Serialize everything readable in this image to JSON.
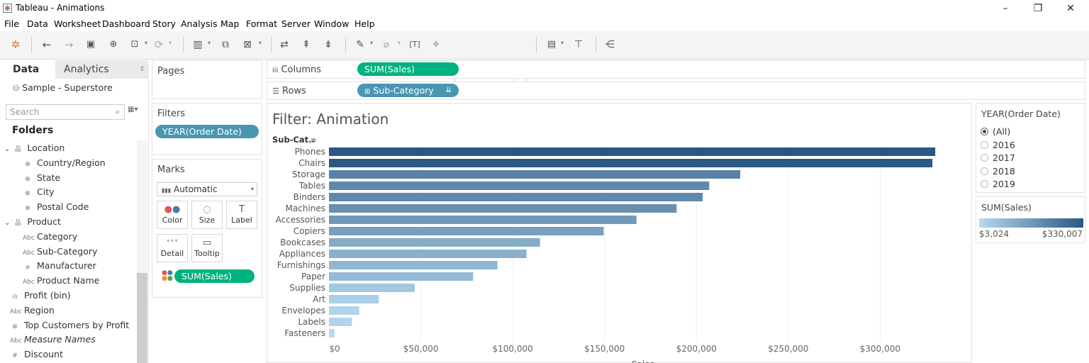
{
  "window": {
    "title": "Tableau - Animations",
    "controls": {
      "minimize": "–",
      "restore": "❐",
      "close": "✕"
    }
  },
  "menu": [
    "File",
    "Data",
    "Worksheet",
    "Dashboard",
    "Story",
    "Analysis",
    "Map",
    "Format",
    "Server",
    "Window",
    "Help"
  ],
  "toolbar": {
    "fit_select": "Standard",
    "show_me": "Show Me",
    "icons": [
      "tableau-logo-icon",
      "undo-icon",
      "redo-icon",
      "save-icon",
      "new-datasource-icon",
      "pause-updates-icon",
      "refresh-icon",
      "new-worksheet-icon",
      "duplicate-sheet-icon",
      "clear-sheet-icon",
      "swap-icon",
      "sort-ascending-icon",
      "sort-descending-icon",
      "highlight-icon",
      "group-icon",
      "label-icon",
      "pin-icon",
      "chart-type-icon",
      "presentation-icon",
      "share-icon"
    ]
  },
  "data_pane": {
    "tabs": [
      "Data",
      "Analytics"
    ],
    "datasource": "Sample - Superstore",
    "search_placeholder": "Search",
    "folders_label": "Folders",
    "fields": [
      {
        "label": "Location",
        "icon": "hierarchy-icon",
        "level": 0,
        "expand": "⌄"
      },
      {
        "label": "Country/Region",
        "icon": "globe-icon",
        "level": 1
      },
      {
        "label": "State",
        "icon": "globe-icon",
        "level": 1
      },
      {
        "label": "City",
        "icon": "globe-icon",
        "level": 1
      },
      {
        "label": "Postal Code",
        "icon": "globe-icon",
        "level": 1
      },
      {
        "label": "Product",
        "icon": "hierarchy-icon",
        "level": 0,
        "expand": "⌄"
      },
      {
        "label": "Category",
        "icon": "abc-icon",
        "level": 1
      },
      {
        "label": "Sub-Category",
        "icon": "abc-icon",
        "level": 1
      },
      {
        "label": "Manufacturer",
        "icon": "clip-icon",
        "level": 1
      },
      {
        "label": "Product Name",
        "icon": "abc-icon",
        "level": 1
      },
      {
        "label": "Profit (bin)",
        "icon": "bin-icon",
        "level": 0
      },
      {
        "label": "Region",
        "icon": "abc-icon",
        "level": 0
      },
      {
        "label": "Top Customers by Profit",
        "icon": "set-icon",
        "level": 0
      },
      {
        "label": "Measure Names",
        "icon": "abc-icon",
        "level": 0,
        "italic": true
      },
      {
        "label": "Discount",
        "icon": "hash-icon",
        "level": 0
      }
    ]
  },
  "pages_label": "Pages",
  "filters": {
    "label": "Filters",
    "pill": "YEAR(Order Date)"
  },
  "marks": {
    "label": "Marks",
    "type": "Automatic",
    "buttons": [
      {
        "label": "Color",
        "icon": "color-dots-icon"
      },
      {
        "label": "Size",
        "icon": "size-icon"
      },
      {
        "label": "Label",
        "icon": "label-t-icon"
      },
      {
        "label": "Detail",
        "icon": "detail-dots-icon"
      },
      {
        "label": "Tooltip",
        "icon": "tooltip-icon"
      }
    ],
    "pill": "SUM(Sales)"
  },
  "columns": {
    "label": "Columns",
    "pill": "SUM(Sales)"
  },
  "rows": {
    "label": "Rows",
    "pill": "Sub-Category"
  },
  "sheet_title": "Filter: Animation",
  "year_filter": {
    "title": "YEAR(Order Date)",
    "options": [
      "(All)",
      "2016",
      "2017",
      "2018",
      "2019"
    ],
    "selected": "(All)"
  },
  "sales_legend": {
    "title": "SUM(Sales)",
    "min_label": "$3,024",
    "max_label": "$330,007",
    "color_low": "#b5d9ef",
    "color_high": "#2a5783"
  },
  "chart_data": {
    "type": "bar",
    "orientation": "horizontal",
    "title": "Filter: Animation",
    "row_header": "Sub-Cat..",
    "xlabel": "Sales",
    "categories": [
      "Phones",
      "Chairs",
      "Storage",
      "Tables",
      "Binders",
      "Machines",
      "Accessories",
      "Copiers",
      "Bookcases",
      "Appliances",
      "Furnishings",
      "Paper",
      "Supplies",
      "Art",
      "Envelopes",
      "Labels",
      "Fasteners"
    ],
    "values": [
      330007,
      328449,
      223844,
      206966,
      203413,
      189239,
      167380,
      149528,
      114880,
      107532,
      91705,
      78479,
      46674,
      27119,
      16476,
      12486,
      3024
    ],
    "xlim": [
      0,
      345000
    ],
    "xticks": [
      0,
      50000,
      100000,
      150000,
      200000,
      250000,
      300000
    ],
    "xtick_labels": [
      "$0",
      "$50,000",
      "$100,000",
      "$150,000",
      "$200,000",
      "$250,000",
      "$300,000"
    ],
    "grid": true,
    "color_scale": [
      "#b5d9ef",
      "#2a5783"
    ]
  }
}
